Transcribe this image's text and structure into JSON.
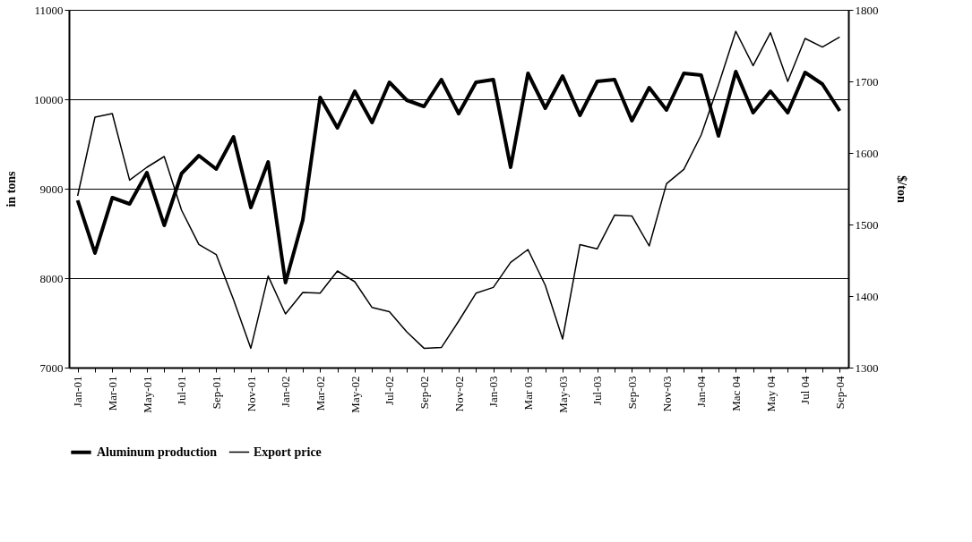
{
  "chart_data": {
    "type": "line",
    "categories": [
      "Jan-01",
      null,
      "Mar-01",
      null,
      "May-01",
      null,
      "Jul-01",
      null,
      "Sep-01",
      null,
      "Nov-01",
      null,
      "Jan-02",
      null,
      "Mar-02",
      null,
      "May-02",
      null,
      "Jul-02",
      null,
      "Sep-02",
      null,
      "Nov-02",
      null,
      "Jan-03",
      null,
      "Mar 03",
      null,
      "May-03",
      null,
      "Jul-03",
      null,
      "Sep-03",
      null,
      "Nov-03",
      null,
      "Jan-04",
      null,
      "Mac 04",
      null,
      "May 04",
      null,
      "Jul 04",
      null,
      "Sep-04"
    ],
    "series": [
      {
        "name": "Aluminum production",
        "color": "#000000",
        "axis": "y",
        "values": [
          8870,
          8280,
          8900,
          8830,
          9180,
          8590,
          9170,
          9370,
          9220,
          9580,
          8790,
          9300,
          7950,
          8650,
          10020,
          9680,
          10090,
          9740,
          10190,
          9990,
          9920,
          10220,
          9840,
          10190,
          10220,
          9240,
          10290,
          9900,
          10260,
          9820,
          10200,
          10220,
          9760,
          10130,
          9880,
          10290,
          10270,
          9590,
          10310,
          9850,
          10090,
          9850,
          10300,
          10170,
          9870
        ]
      },
      {
        "name": "Export price",
        "color": "#000000",
        "axis": "y2",
        "values": [
          1540,
          1650,
          1655,
          1562,
          1580,
          1595,
          1520,
          1472,
          1458,
          1395,
          1327,
          1428,
          1375,
          1405,
          1404,
          1435,
          1420,
          1384,
          1378,
          1350,
          1327,
          1328,
          1365,
          1404,
          1412,
          1447,
          1465,
          1415,
          1340,
          1472,
          1466,
          1513,
          1512,
          1470,
          1557,
          1577,
          1625,
          1695,
          1770,
          1722,
          1768,
          1700,
          1760,
          1748,
          1762
        ]
      }
    ],
    "ylabel": "in tons",
    "y2label": "$/ton",
    "ylim": [
      7000,
      11000
    ],
    "yticks": [
      7000,
      8000,
      9000,
      10000,
      11000
    ],
    "y2lim": [
      1300,
      1800
    ],
    "y2ticks": [
      1300,
      1400,
      1500,
      1600,
      1700,
      1800
    ],
    "grid": "y",
    "legend": "bottom",
    "marker": "none",
    "line_style": "solid"
  }
}
